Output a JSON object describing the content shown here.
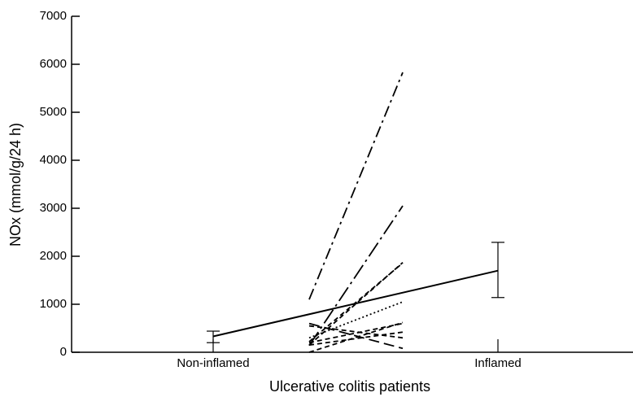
{
  "chart_data": {
    "type": "line",
    "y_label": "NOx (mmol/g/24 h)",
    "x_label": "Ulcerative colitis patients",
    "categories": [
      "Non-inflamed",
      "Inflamed"
    ],
    "ylim": [
      0,
      7000
    ],
    "yticks": [
      0,
      1000,
      2000,
      3000,
      4000,
      5000,
      6000,
      7000
    ],
    "color": "#000000",
    "mean": {
      "values": [
        330,
        1700
      ],
      "error_bars": [
        [
          200,
          440
        ],
        [
          1140,
          2290
        ]
      ]
    },
    "patients": [
      {
        "dash": "dashdot",
        "values": [
          1100,
          5830
        ]
      },
      {
        "dash": "longdashdot",
        "values": [
          140,
          3050
        ]
      },
      {
        "dash": "dashed",
        "values": [
          220,
          1860
        ]
      },
      {
        "dash": "dashed",
        "values": [
          150,
          1870
        ]
      },
      {
        "dash": "dotted",
        "values": [
          300,
          1050
        ]
      },
      {
        "dash": "longdash",
        "values": [
          600,
          80
        ]
      },
      {
        "dash": "dashed",
        "values": [
          200,
          600
        ]
      },
      {
        "dash": "dashed",
        "values": [
          0,
          620
        ]
      },
      {
        "dash": "dashed",
        "values": [
          150,
          420
        ]
      },
      {
        "dash": "dashed",
        "values": [
          550,
          300
        ]
      }
    ]
  }
}
